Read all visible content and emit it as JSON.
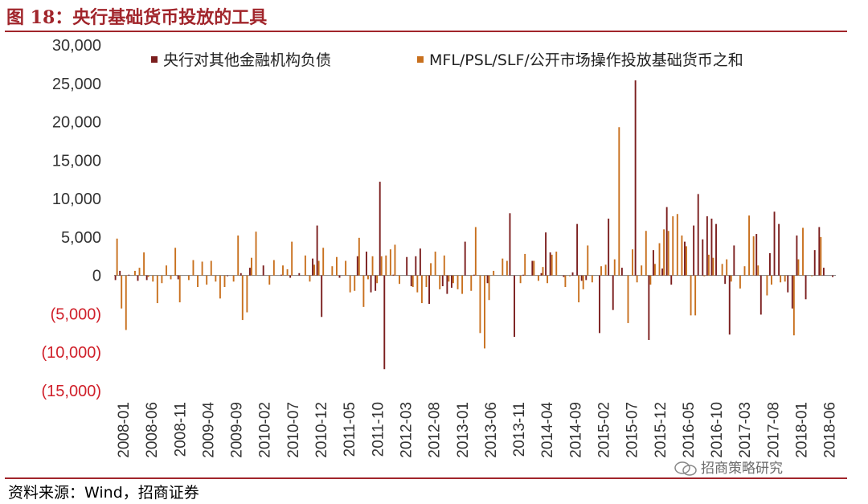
{
  "header": {
    "title": "图 18：央行基础货币投放的工具"
  },
  "footer": {
    "source": "资料来源：Wind，招商证券",
    "watermark": "招商策略研究"
  },
  "colors": {
    "accent": "#a1252b",
    "series1": "#7b1e1e",
    "series2": "#c8701e",
    "negative_label": "#d0202a"
  },
  "chart_data": {
    "type": "bar",
    "title": "",
    "xlabel": "",
    "ylabel": "",
    "ylim": [
      -15000,
      30000
    ],
    "yticks": [
      30000,
      25000,
      20000,
      15000,
      10000,
      5000,
      0,
      -5000,
      -10000,
      -15000
    ],
    "ytick_labels": [
      "30,000",
      "25,000",
      "20,000",
      "15,000",
      "10,000",
      "5,000",
      "0",
      "(5,000)",
      "(10,000)",
      "(15,000)"
    ],
    "xtick_labels": [
      "2008-01",
      "2008-06",
      "2008-11",
      "2009-04",
      "2009-09",
      "2010-02",
      "2010-07",
      "2010-12",
      "2011-05",
      "2011-10",
      "2012-03",
      "2012-08",
      "2013-01",
      "2013-06",
      "2013-11",
      "2014-04",
      "2014-09",
      "2015-02",
      "2015-07",
      "2015-12",
      "2016-05",
      "2016-10",
      "2017-03",
      "2017-08",
      "2018-01",
      "2018-06"
    ],
    "legend_position": "top",
    "series": [
      {
        "name": "央行对其他金融机构负债",
        "values": [
          -600,
          600,
          0,
          100,
          0,
          -700,
          0,
          -600,
          0,
          0,
          0,
          0,
          0,
          0,
          -500,
          0,
          0,
          0,
          0,
          0,
          0,
          0,
          0,
          0,
          0,
          -100,
          0,
          0,
          300,
          0,
          1000,
          0,
          0,
          1300,
          0,
          0,
          0,
          100,
          0,
          -300,
          0,
          300,
          0,
          0,
          2200,
          6500,
          -5400,
          0,
          0,
          0,
          -300,
          0,
          0,
          0,
          2500,
          0,
          3100,
          -2200,
          -2000,
          12200,
          -12200,
          0,
          100,
          0,
          0,
          2400,
          -1400,
          2500,
          3500,
          0,
          -3700,
          0,
          0,
          -1400,
          -2400,
          -1600,
          0,
          0,
          4400,
          0,
          100,
          0,
          0,
          -1000,
          0,
          0,
          0,
          0,
          8100,
          -8000,
          0,
          100,
          0,
          1900,
          0,
          300,
          5600,
          3000,
          0,
          0,
          -200,
          0,
          400,
          6700,
          -700,
          -600,
          0,
          0,
          -7500,
          0,
          7400,
          -4500,
          0,
          1000,
          0,
          0,
          25400,
          0,
          0,
          -8400,
          3300,
          0,
          900,
          8900,
          -1200,
          0,
          0,
          4400,
          0,
          6500,
          10600,
          4700,
          7700,
          7400,
          6700,
          0,
          -1100,
          -7700,
          3900,
          0,
          0,
          0,
          0,
          5400,
          -5100,
          0,
          2900,
          8300,
          6700,
          0,
          -2200,
          -4300,
          5200,
          0,
          -3100,
          0,
          3300,
          6300,
          1000,
          0,
          -200
        ],
        "color": "#7b1e1e"
      },
      {
        "name": "MFL/PSL/SLF/公开市场操作投放基础货币之和",
        "values": [
          4800,
          -4300,
          -7100,
          0,
          600,
          1000,
          3000,
          -200,
          -800,
          -3600,
          -1000,
          1300,
          -500,
          3600,
          -3500,
          0,
          -600,
          2000,
          -1500,
          1800,
          -1200,
          1900,
          -800,
          -3000,
          -1500,
          0,
          -800,
          5200,
          -5800,
          -4800,
          2300,
          5700,
          0,
          0,
          -1200,
          2000,
          0,
          1300,
          800,
          4400,
          0,
          0,
          2600,
          -800,
          1400,
          1900,
          3600,
          0,
          1200,
          2400,
          0,
          1900,
          -2200,
          -2000,
          4900,
          -4100,
          -500,
          2500,
          -1000,
          2500,
          2600,
          3400,
          4000,
          -1100,
          0,
          0,
          -1500,
          -2200,
          -3600,
          -1500,
          1600,
          3100,
          -1800,
          2600,
          -800,
          -1000,
          -1800,
          -2400,
          0,
          -2000,
          6300,
          -7500,
          -9500,
          -3200,
          600,
          0,
          2200,
          1900,
          0,
          0,
          -1000,
          2800,
          0,
          1900,
          -700,
          1100,
          -1000,
          2700,
          3100,
          0,
          -1500,
          -100,
          0,
          -3500,
          -1800,
          3900,
          -900,
          0,
          1200,
          1400,
          0,
          2100,
          19300,
          0,
          -6200,
          3400,
          -900,
          1300,
          5800,
          -1200,
          1500,
          4200,
          6000,
          5800,
          7700,
          8000,
          5200,
          3800,
          -5200,
          -5200,
          0,
          -100,
          2700,
          2300,
          0,
          1500,
          2100,
          -800,
          0,
          -1700,
          1200,
          7800,
          5100,
          1300,
          0,
          -2600,
          -1200,
          0,
          -900,
          -800,
          0,
          -7800,
          2100,
          6200,
          0,
          -100,
          0,
          5000
        ],
        "color": "#c8701e"
      }
    ]
  }
}
